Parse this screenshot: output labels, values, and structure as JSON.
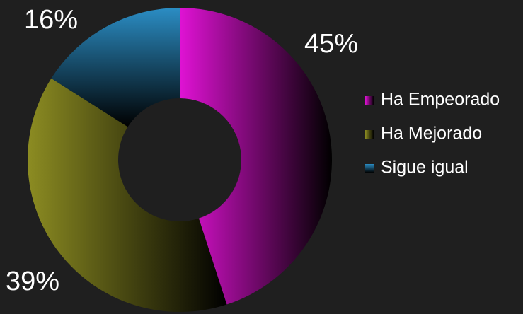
{
  "chart_data": {
    "type": "pie",
    "donut": true,
    "categories": [
      "Ha Empeorado",
      "Ha Mejorado",
      "Sigue igual"
    ],
    "values": [
      45,
      39,
      16
    ],
    "value_labels": [
      "45%",
      "39%",
      "16%"
    ],
    "colors": [
      "#e012d4",
      "#8c8c22",
      "#2b8dc4"
    ],
    "legend": "right"
  }
}
